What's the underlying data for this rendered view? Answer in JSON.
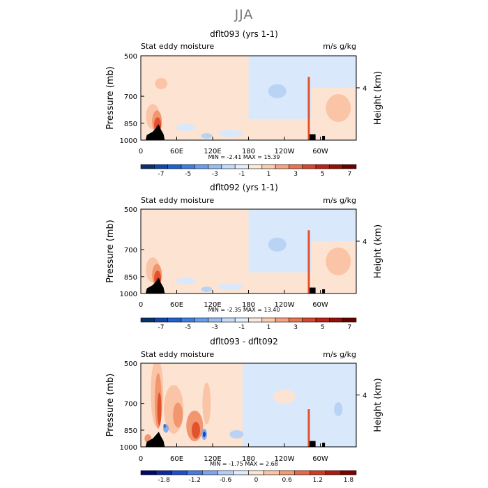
{
  "page": {
    "title": "JJA"
  },
  "colors": {
    "plot_border": "#000000",
    "terrain": "#000000",
    "scale_bar_full": [
      "#08306b",
      "#1148a8",
      "#1c62d0",
      "#3d7fe0",
      "#6a9ded",
      "#98bdf4",
      "#c6dbfa",
      "#e4eefb",
      "#fde8dc",
      "#fbccb0",
      "#f5a37f",
      "#ea7350",
      "#d6462e",
      "#bb2114",
      "#931006",
      "#6b0000"
    ],
    "scale_bar_diff": [
      "#00096b",
      "#0b2a9d",
      "#1f4fd0",
      "#4a78e3",
      "#7fa4ef",
      "#b6cef7",
      "#dfeafb",
      "#fde5d6",
      "#fbc4a4",
      "#f49b74",
      "#e66a45",
      "#d03b22",
      "#ad1a0e",
      "#7e0000"
    ]
  },
  "chart_data": [
    {
      "type": "heatmap",
      "title": "dflt093 (yrs 1-1)",
      "left_label": "Stat eddy moisture",
      "right_label": "m/s g/kg",
      "ylabel": "Pressure (mb)",
      "ylabel_right": "Height (km)",
      "y_ticks": [
        "500",
        "700",
        "850",
        "1000"
      ],
      "y_right_ticks": [
        "4"
      ],
      "x_ticks": [
        "0",
        "60E",
        "120E",
        "180",
        "120W",
        "60W"
      ],
      "stats": {
        "min_label": "MIN =",
        "min": "-2.41",
        "max_label": "MAX =",
        "max": "15.39"
      },
      "colorbar_labels": [
        "-7",
        "-5",
        "-3",
        "-1",
        "1",
        "3",
        "5",
        "7"
      ],
      "xlim": [
        0,
        360
      ],
      "ylim": [
        1000,
        500
      ]
    },
    {
      "type": "heatmap",
      "title": "dflt092 (yrs 1-1)",
      "left_label": "Stat eddy moisture",
      "right_label": "m/s g/kg",
      "ylabel": "Pressure (mb)",
      "ylabel_right": "Height (km)",
      "y_ticks": [
        "500",
        "700",
        "850",
        "1000"
      ],
      "y_right_ticks": [
        "4"
      ],
      "x_ticks": [
        "0",
        "60E",
        "120E",
        "180",
        "120W",
        "60W"
      ],
      "stats": {
        "min_label": "MIN =",
        "min": "-2.35",
        "max_label": "MAX =",
        "max": "13.40"
      },
      "colorbar_labels": [
        "-7",
        "-5",
        "-3",
        "-1",
        "1",
        "3",
        "5",
        "7"
      ],
      "xlim": [
        0,
        360
      ],
      "ylim": [
        1000,
        500
      ]
    },
    {
      "type": "heatmap",
      "title": "dflt093 - dflt092",
      "left_label": "Stat eddy moisture",
      "right_label": "m/s g/kg",
      "ylabel": "Pressure (mb)",
      "ylabel_right": "Height (km)",
      "y_ticks": [
        "500",
        "700",
        "850",
        "1000"
      ],
      "y_right_ticks": [
        "4"
      ],
      "x_ticks": [
        "0",
        "60E",
        "120E",
        "180",
        "120W",
        "60W"
      ],
      "stats": {
        "min_label": "MIN =",
        "min": "-1.75",
        "max_label": "MAX =",
        "max": "2.68"
      },
      "colorbar_labels": [
        "-1.8",
        "-1.2",
        "-0.6",
        "0",
        "0.6",
        "1.2",
        "1.8"
      ],
      "xlim": [
        0,
        360
      ],
      "ylim": [
        1000,
        500
      ]
    }
  ]
}
